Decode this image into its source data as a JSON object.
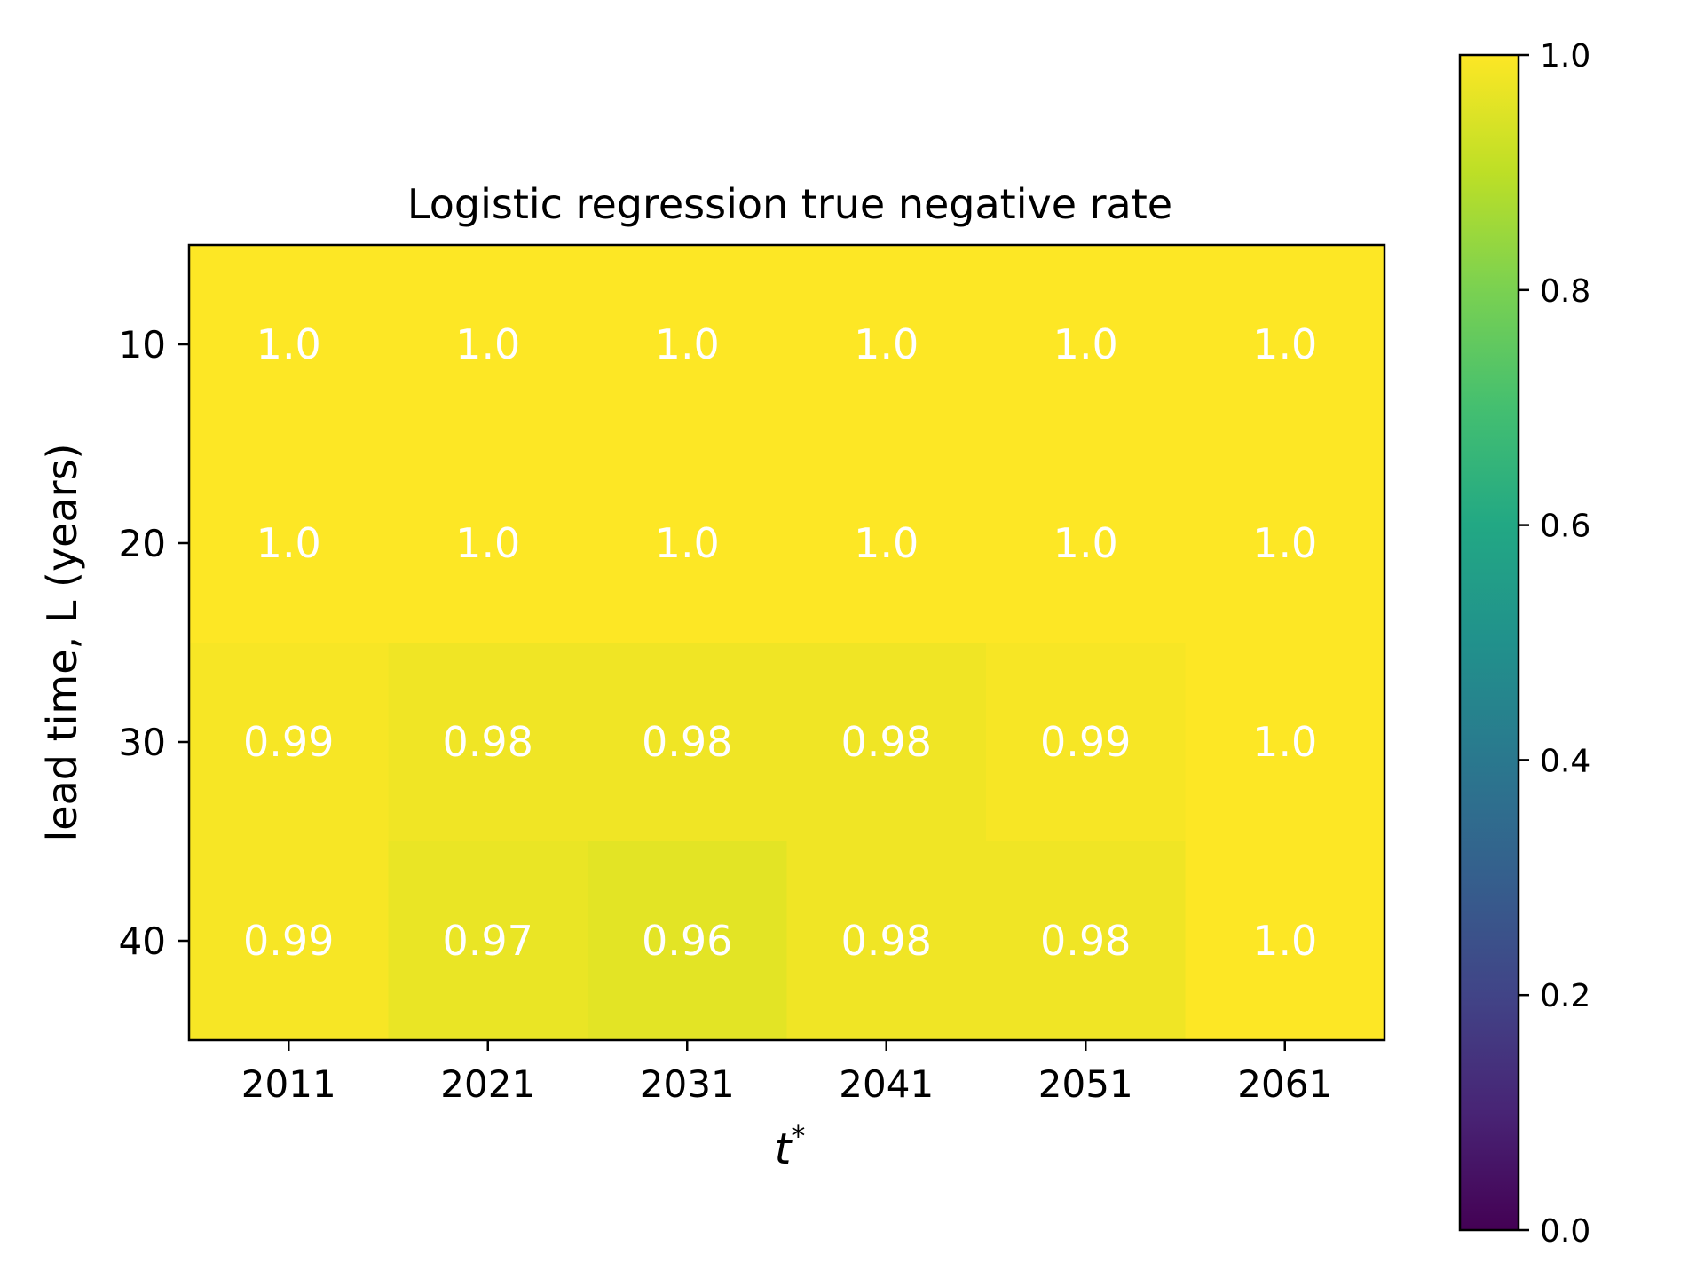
{
  "chart_data": {
    "type": "heatmap",
    "title": "Logistic regression true negative rate",
    "xlabel": "t",
    "xlabel_superscript": "*",
    "ylabel": "lead time, L (years)",
    "x_categories": [
      "2011",
      "2021",
      "2031",
      "2041",
      "2051",
      "2061"
    ],
    "y_categories": [
      "10",
      "20",
      "30",
      "40"
    ],
    "values": [
      [
        1.0,
        1.0,
        1.0,
        1.0,
        1.0,
        1.0
      ],
      [
        1.0,
        1.0,
        1.0,
        1.0,
        1.0,
        1.0
      ],
      [
        0.99,
        0.98,
        0.98,
        0.98,
        0.99,
        1.0
      ],
      [
        0.99,
        0.97,
        0.96,
        0.98,
        0.98,
        1.0
      ]
    ],
    "cell_labels": [
      [
        "1.0",
        "1.0",
        "1.0",
        "1.0",
        "1.0",
        "1.0"
      ],
      [
        "1.0",
        "1.0",
        "1.0",
        "1.0",
        "1.0",
        "1.0"
      ],
      [
        "0.99",
        "0.98",
        "0.98",
        "0.98",
        "0.99",
        "1.0"
      ],
      [
        "0.99",
        "0.97",
        "0.96",
        "0.98",
        "0.98",
        "1.0"
      ]
    ],
    "colormap": "viridis",
    "color_range": [
      0.0,
      1.0
    ],
    "colorbar_ticks": [
      "0.0",
      "0.2",
      "0.4",
      "0.6",
      "0.8",
      "1.0"
    ],
    "colorbar_tick_values": [
      0.0,
      0.2,
      0.4,
      0.6,
      0.8,
      1.0
    ],
    "annotation_color": "#ffffff"
  }
}
